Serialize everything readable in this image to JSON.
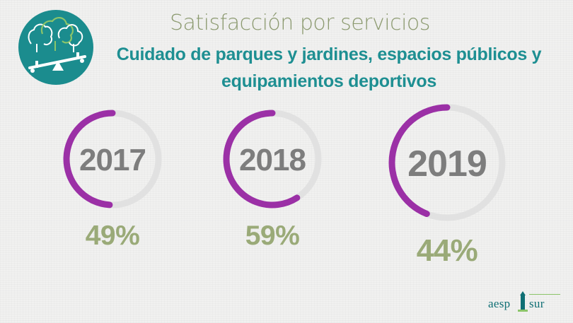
{
  "header": {
    "title": "Satisfacción por servicios",
    "subtitle": "Cuidado de parques y jardines, espacios públicos y equipamientos deportivos"
  },
  "chart_data": {
    "type": "donut",
    "categories": [
      "2017",
      "2018",
      "2019"
    ],
    "values": [
      49,
      59,
      44
    ],
    "value_labels": [
      "49%",
      "59%",
      "44%"
    ],
    "unit": "%",
    "colors": {
      "filled": "#9b30a6",
      "track": "#e1e1e1",
      "year": "#7d7d7d",
      "percent": "#9aaa78"
    }
  },
  "logo": {
    "left": "aesp",
    "right": "sur",
    "colors": {
      "circle": "#1b8c8e",
      "brand": "#0f6f74",
      "accent": "#8cc56a"
    }
  }
}
